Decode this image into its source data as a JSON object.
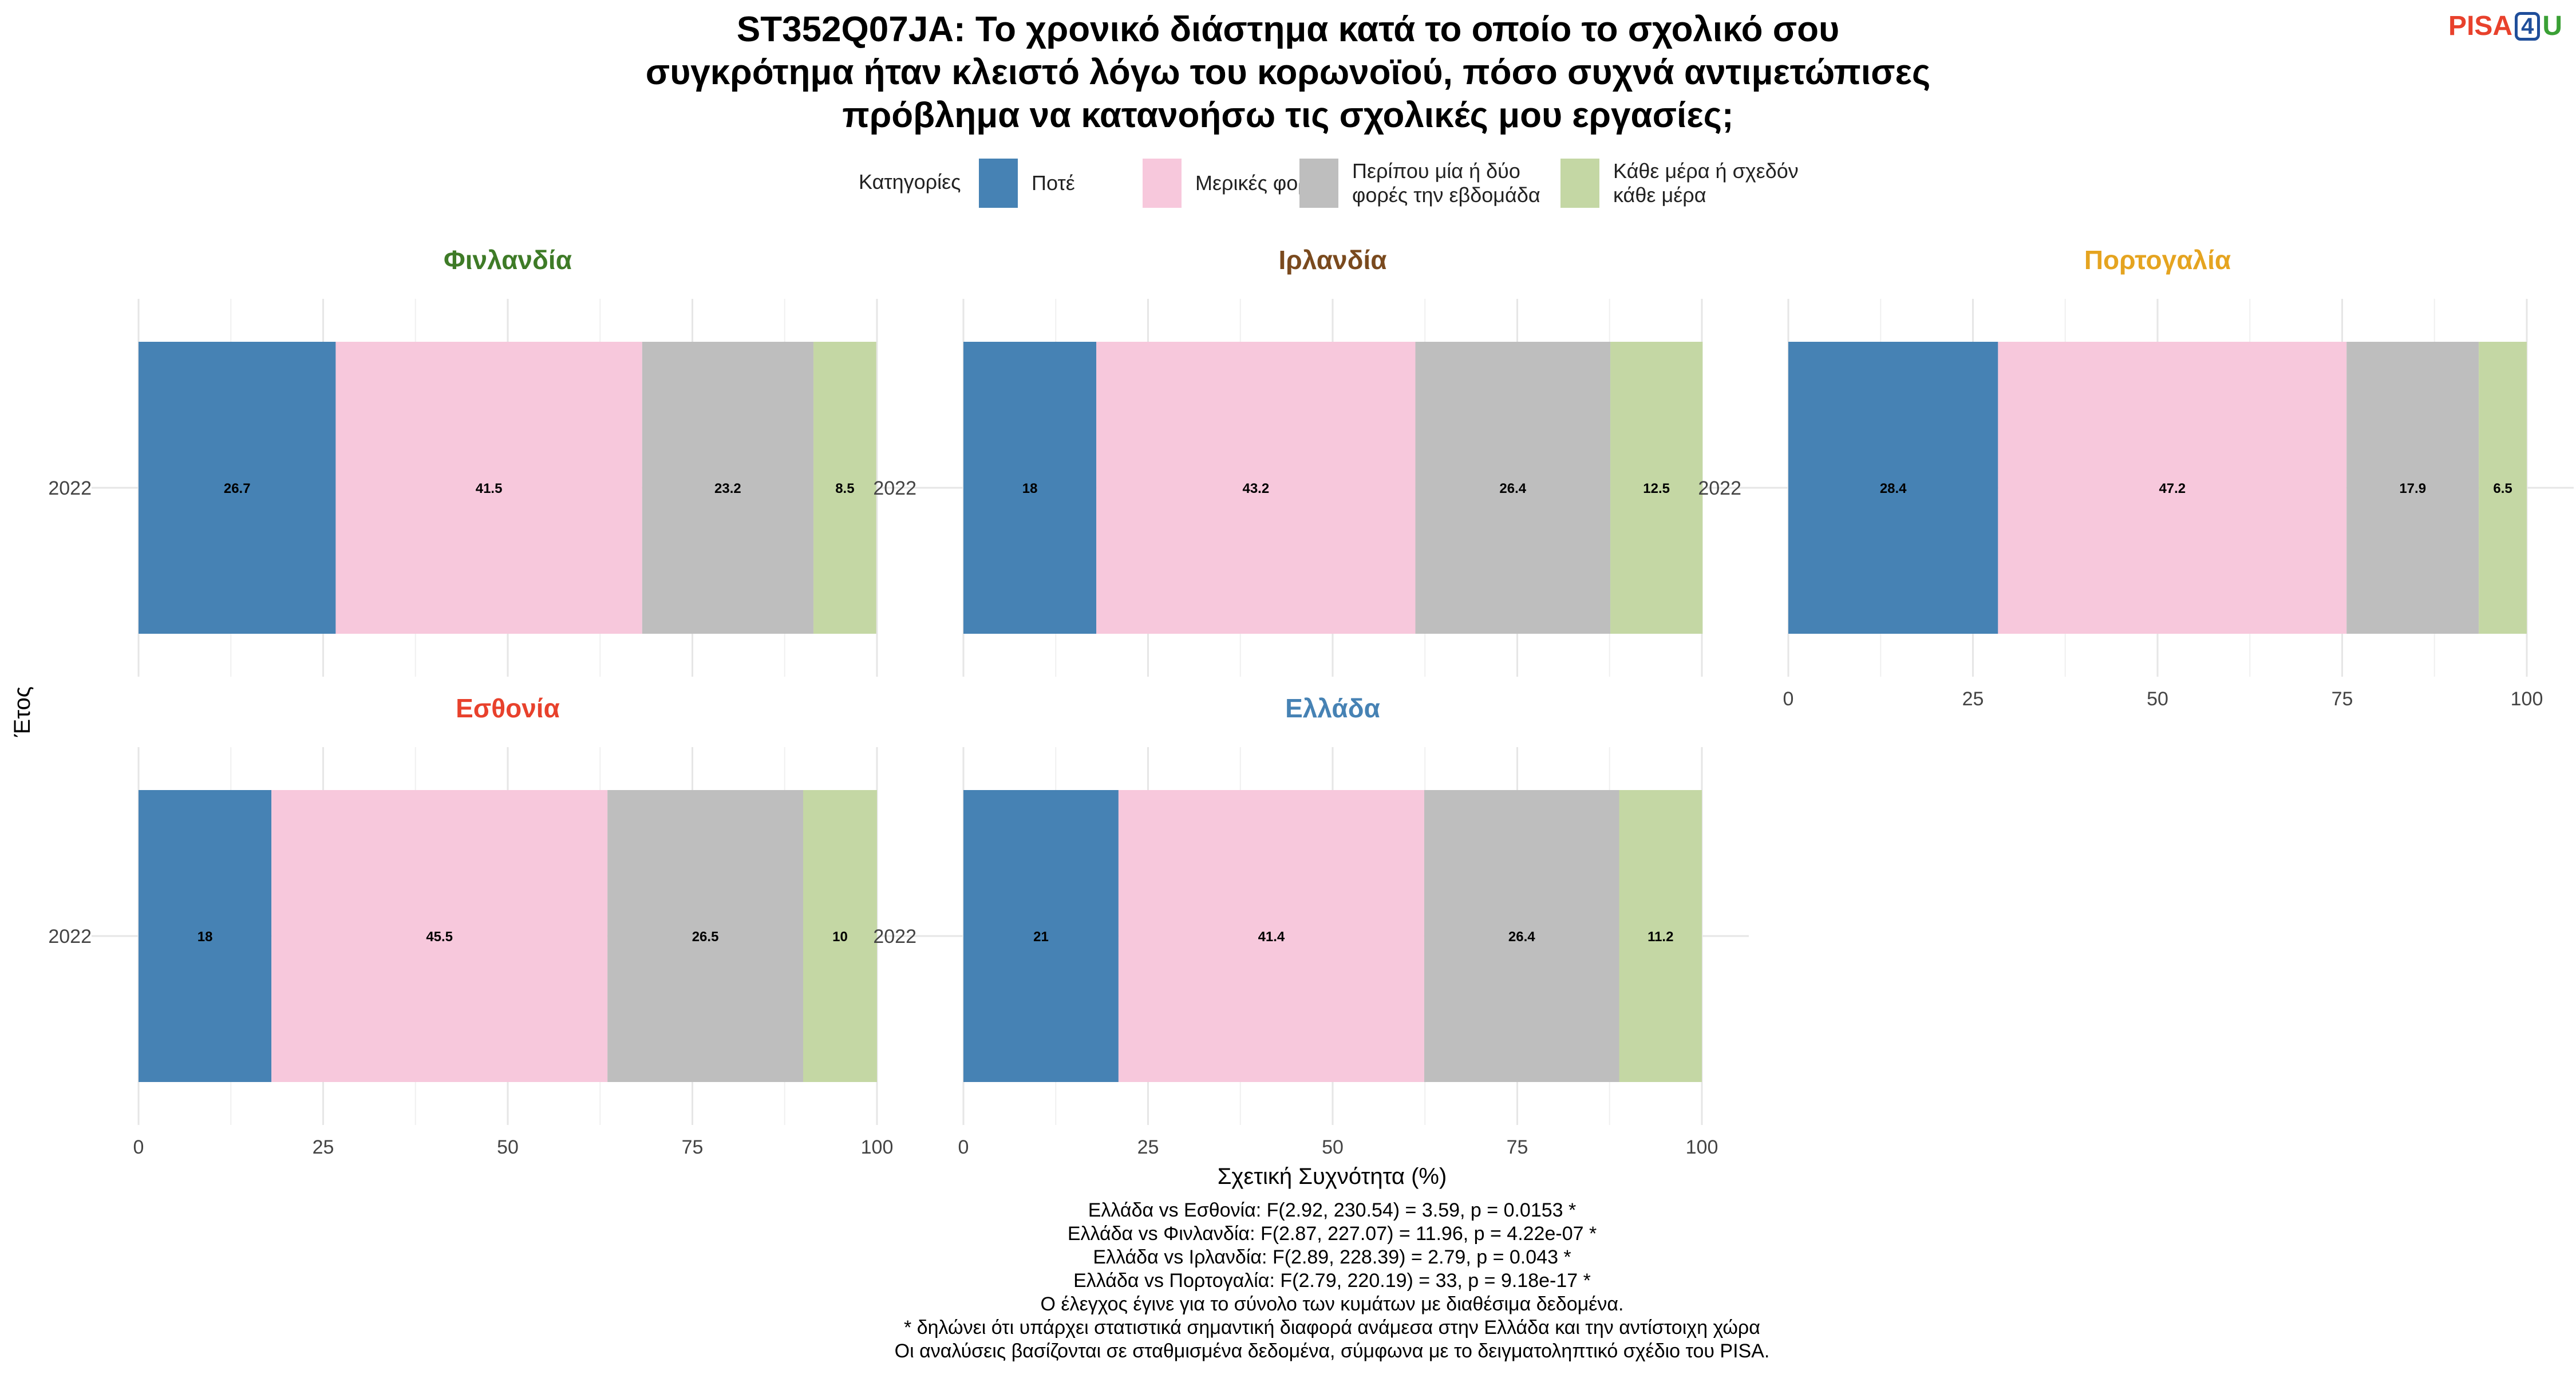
{
  "logo": {
    "part1": "PISA",
    "part2": "4",
    "part3": "U"
  },
  "chart_data": {
    "type": "bar",
    "orientation": "horizontal-stacked",
    "title_lines": [
      "ST352Q07JA: Το χρονικό διάστημα κατά το οποίο το σχολικό σου",
      "συγκρότημα ήταν κλειστό λόγω του κορωνοϊού, πόσο συχνά αντιμετώπισες",
      "πρόβλημα να κατανοήσω τις σχολικές μου εργασίες;"
    ],
    "legend_title": "Κατηγορίες",
    "legend": [
      {
        "lines": [
          "Ποτέ"
        ],
        "color": "#4682B4"
      },
      {
        "lines": [
          "Μερικές φορές"
        ],
        "color": "#F7C8DC"
      },
      {
        "lines": [
          "Περίπου μία ή δύο",
          "φορές την εβδομάδα"
        ],
        "color": "#BEBEBE"
      },
      {
        "lines": [
          "Κάθε μέρα ή σχεδόν",
          "κάθε μέρα"
        ],
        "color": "#C4D7A4"
      }
    ],
    "xlabel": "Σχετική Συχνότητα (%)",
    "ylabel": "Έτος",
    "xlim": [
      0,
      100
    ],
    "xticks": [
      "0",
      "25",
      "50",
      "75",
      "100"
    ],
    "category": "2022",
    "panels": [
      {
        "name": "Φινλανδία",
        "color": "#3E7B27",
        "values": [
          26.7,
          41.5,
          23.2,
          8.5
        ],
        "labels": [
          "26.7",
          "41.5",
          "23.2",
          "8.5"
        ]
      },
      {
        "name": "Ιρλανδία",
        "color": "#7A4A1E",
        "values": [
          18,
          43.2,
          26.4,
          12.5
        ],
        "labels": [
          "18",
          "43.2",
          "26.4",
          "12.5"
        ]
      },
      {
        "name": "Πορτογαλία",
        "color": "#E5A420",
        "values": [
          28.4,
          47.2,
          17.9,
          6.5
        ],
        "labels": [
          "28.4",
          "47.2",
          "17.9",
          "6.5"
        ]
      },
      {
        "name": "Εσθονία",
        "color": "#E8412C",
        "values": [
          18,
          45.5,
          26.5,
          10
        ],
        "labels": [
          "18",
          "45.5",
          "26.5",
          "10"
        ]
      },
      {
        "name": "Ελλάδα",
        "color": "#4682B4",
        "values": [
          21,
          41.4,
          26.4,
          11.2
        ],
        "labels": [
          "21",
          "41.4",
          "26.4",
          "11.2"
        ]
      }
    ],
    "caption": [
      "Ελλάδα vs Εσθονία: F(2.92, 230.54) = 3.59, p = 0.0153 *",
      "Ελλάδα vs Φινλανδία: F(2.87, 227.07) = 11.96, p = 4.22e-07 *",
      "Ελλάδα vs Ιρλανδία: F(2.89, 228.39) = 2.79, p = 0.043 *",
      "Ελλάδα vs Πορτογαλία: F(2.79, 220.19) = 33, p = 9.18e-17 *",
      "Ο έλεγχος έγινε για το σύνολο των κυμάτων με διαθέσιμα δεδομένα.",
      "* δηλώνει ότι υπάρχει στατιστικά σημαντική διαφορά ανάμεσα στην Ελλάδα και την αντίστοιχη χώρα",
      "Οι αναλύσεις βασίζονται σε σταθμισμένα δεδομένα, σύμφωνα με το δειγματοληπτικό σχέδιο του PISA."
    ],
    "grid": true,
    "legend_position": "top"
  }
}
